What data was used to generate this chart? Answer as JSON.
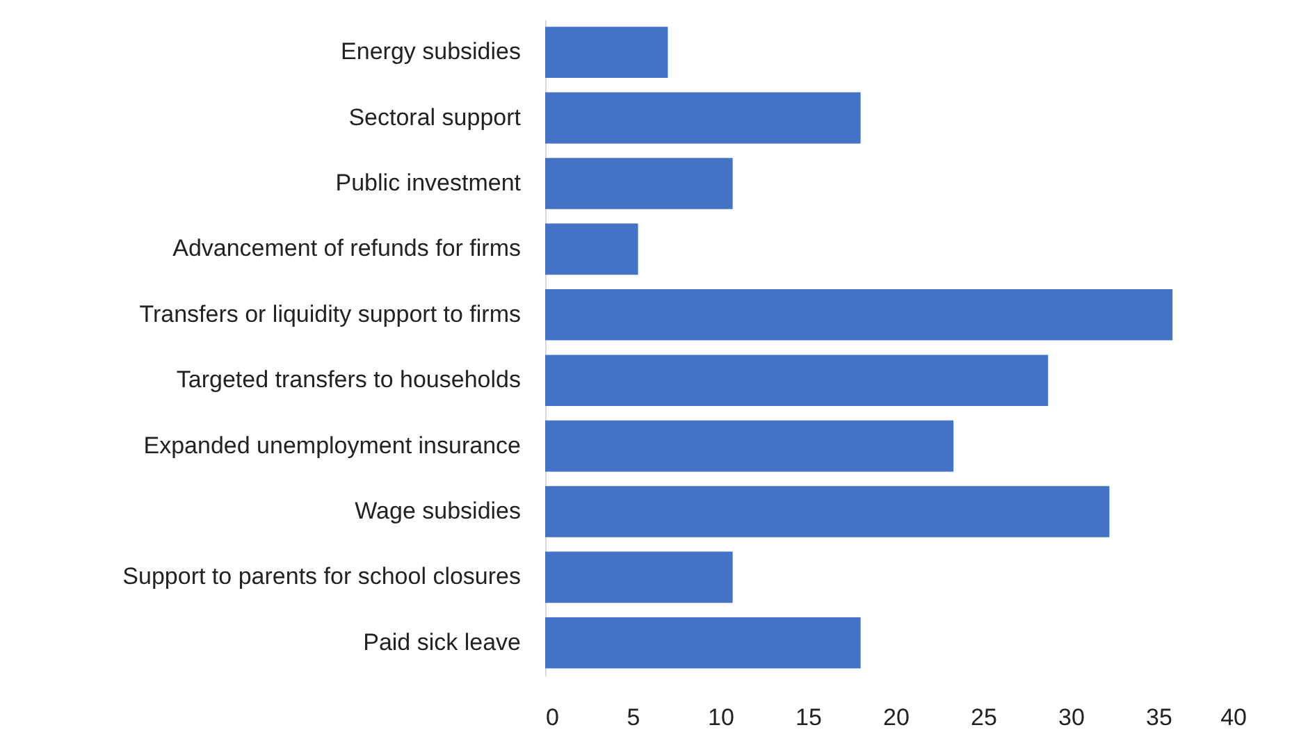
{
  "chart_data": {
    "type": "bar",
    "orientation": "horizontal",
    "categories": [
      "Energy subsidies",
      "Sectoral support",
      "Public investment",
      "Advancement of refunds for firms",
      "Transfers or liquidity support to firms",
      "Targeted transfers to households",
      "Expanded unemployment insurance",
      "Wage subsidies",
      "Support to parents for school closures",
      "Paid sick leave"
    ],
    "values": [
      7,
      18,
      10.7,
      5.3,
      35.8,
      28.7,
      23.3,
      32.2,
      10.7,
      18
    ],
    "color": "#4472c4",
    "xlim": [
      0,
      40
    ],
    "xticks": [
      0,
      5,
      10,
      15,
      20,
      25,
      30,
      35,
      40
    ]
  }
}
